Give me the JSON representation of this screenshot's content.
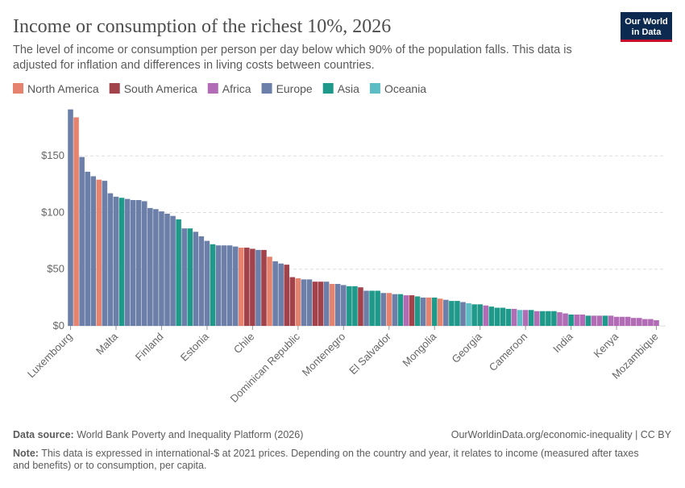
{
  "chart_data": {
    "type": "bar",
    "title": "Income or consumption of the richest 10%, 2026",
    "subtitle": [
      "The level of income or consumption per person per day below which 90% of the population falls. This data is",
      "adjusted for inflation and differences in living costs between countries."
    ],
    "logo": [
      "Our World",
      "in Data"
    ],
    "source_label": "Data source:",
    "source": "World Bank Poverty and Inequality Platform (2026)",
    "link": "OurWorldinData.org/economic-inequality | CC BY",
    "note_label": "Note:",
    "note": [
      "This data is expressed in international-$ at 2021 prices. Depending on the country and year, it relates to income (measured after taxes",
      "and benefits) or to consumption, per capita."
    ],
    "series": [
      {
        "name": "North America",
        "color": "#e6836f"
      },
      {
        "name": "South America",
        "color": "#a2424a"
      },
      {
        "name": "Africa",
        "color": "#b16cb5"
      },
      {
        "name": "Europe",
        "color": "#6c7fa8"
      },
      {
        "name": "Asia",
        "color": "#1f9a8a"
      },
      {
        "name": "Oceania",
        "color": "#5cbdc4"
      }
    ],
    "categories": [
      "Luxembourg",
      null,
      null,
      null,
      null,
      null,
      null,
      null,
      "Malta",
      null,
      null,
      null,
      null,
      null,
      null,
      null,
      "Finland",
      null,
      null,
      null,
      null,
      null,
      null,
      null,
      "Estonia",
      null,
      null,
      null,
      null,
      null,
      null,
      null,
      "Chile",
      null,
      null,
      null,
      null,
      null,
      null,
      null,
      "Dominican Republic",
      null,
      null,
      null,
      null,
      null,
      null,
      null,
      "Montenegro",
      null,
      null,
      null,
      null,
      null,
      null,
      null,
      "El Salvador",
      null,
      null,
      null,
      null,
      null,
      null,
      null,
      "Mongolia",
      null,
      null,
      null,
      null,
      null,
      null,
      null,
      "Georgia",
      null,
      null,
      null,
      null,
      null,
      null,
      null,
      "Cameroon",
      null,
      null,
      null,
      null,
      null,
      null,
      null,
      "India",
      null,
      null,
      null,
      null,
      null,
      null,
      null,
      "Kenya",
      null,
      null,
      null,
      null,
      null,
      null,
      "Mozambique"
    ],
    "values": [
      191,
      184,
      149,
      136,
      132,
      129,
      128,
      117,
      114,
      113,
      112,
      111,
      111,
      110,
      104,
      103,
      101,
      99,
      97,
      94,
      86,
      86,
      83,
      79,
      75,
      72,
      71,
      71,
      71,
      70,
      69,
      69,
      68,
      67,
      67,
      61,
      57,
      55,
      54,
      43,
      42,
      41,
      41,
      39,
      39,
      39,
      37,
      37,
      36,
      35,
      35,
      34,
      31,
      31,
      31,
      29,
      29,
      28,
      28,
      27,
      27,
      26,
      25,
      25,
      25,
      24,
      23,
      22,
      22,
      21,
      20,
      19,
      19,
      18,
      17,
      16,
      16,
      15,
      15,
      14,
      14,
      14,
      13,
      13,
      13,
      13,
      12,
      11,
      10,
      10,
      10,
      9,
      9,
      9,
      9,
      9,
      8,
      8,
      8,
      7,
      7,
      6,
      6,
      5
    ],
    "region": [
      3,
      0,
      3,
      3,
      3,
      0,
      3,
      3,
      3,
      4,
      3,
      3,
      3,
      3,
      3,
      3,
      3,
      3,
      3,
      4,
      3,
      4,
      3,
      3,
      3,
      4,
      3,
      3,
      3,
      3,
      0,
      1,
      1,
      3,
      1,
      0,
      3,
      3,
      1,
      1,
      0,
      3,
      3,
      1,
      1,
      3,
      0,
      3,
      3,
      4,
      4,
      1,
      3,
      4,
      4,
      3,
      0,
      3,
      4,
      2,
      1,
      4,
      3,
      0,
      4,
      0,
      3,
      4,
      4,
      3,
      5,
      4,
      4,
      2,
      4,
      4,
      4,
      4,
      2,
      5,
      2,
      4,
      2,
      4,
      4,
      4,
      2,
      2,
      4,
      2,
      2,
      4,
      2,
      2,
      4,
      2,
      2,
      2,
      2,
      2,
      2,
      2,
      2,
      2
    ],
    "ylim": [
      0,
      195
    ],
    "yticks": [
      {
        "value": 0,
        "label": "$0"
      },
      {
        "value": 50,
        "label": "$50"
      },
      {
        "value": 100,
        "label": "$100"
      },
      {
        "value": 150,
        "label": "$150"
      }
    ],
    "grid": true
  }
}
